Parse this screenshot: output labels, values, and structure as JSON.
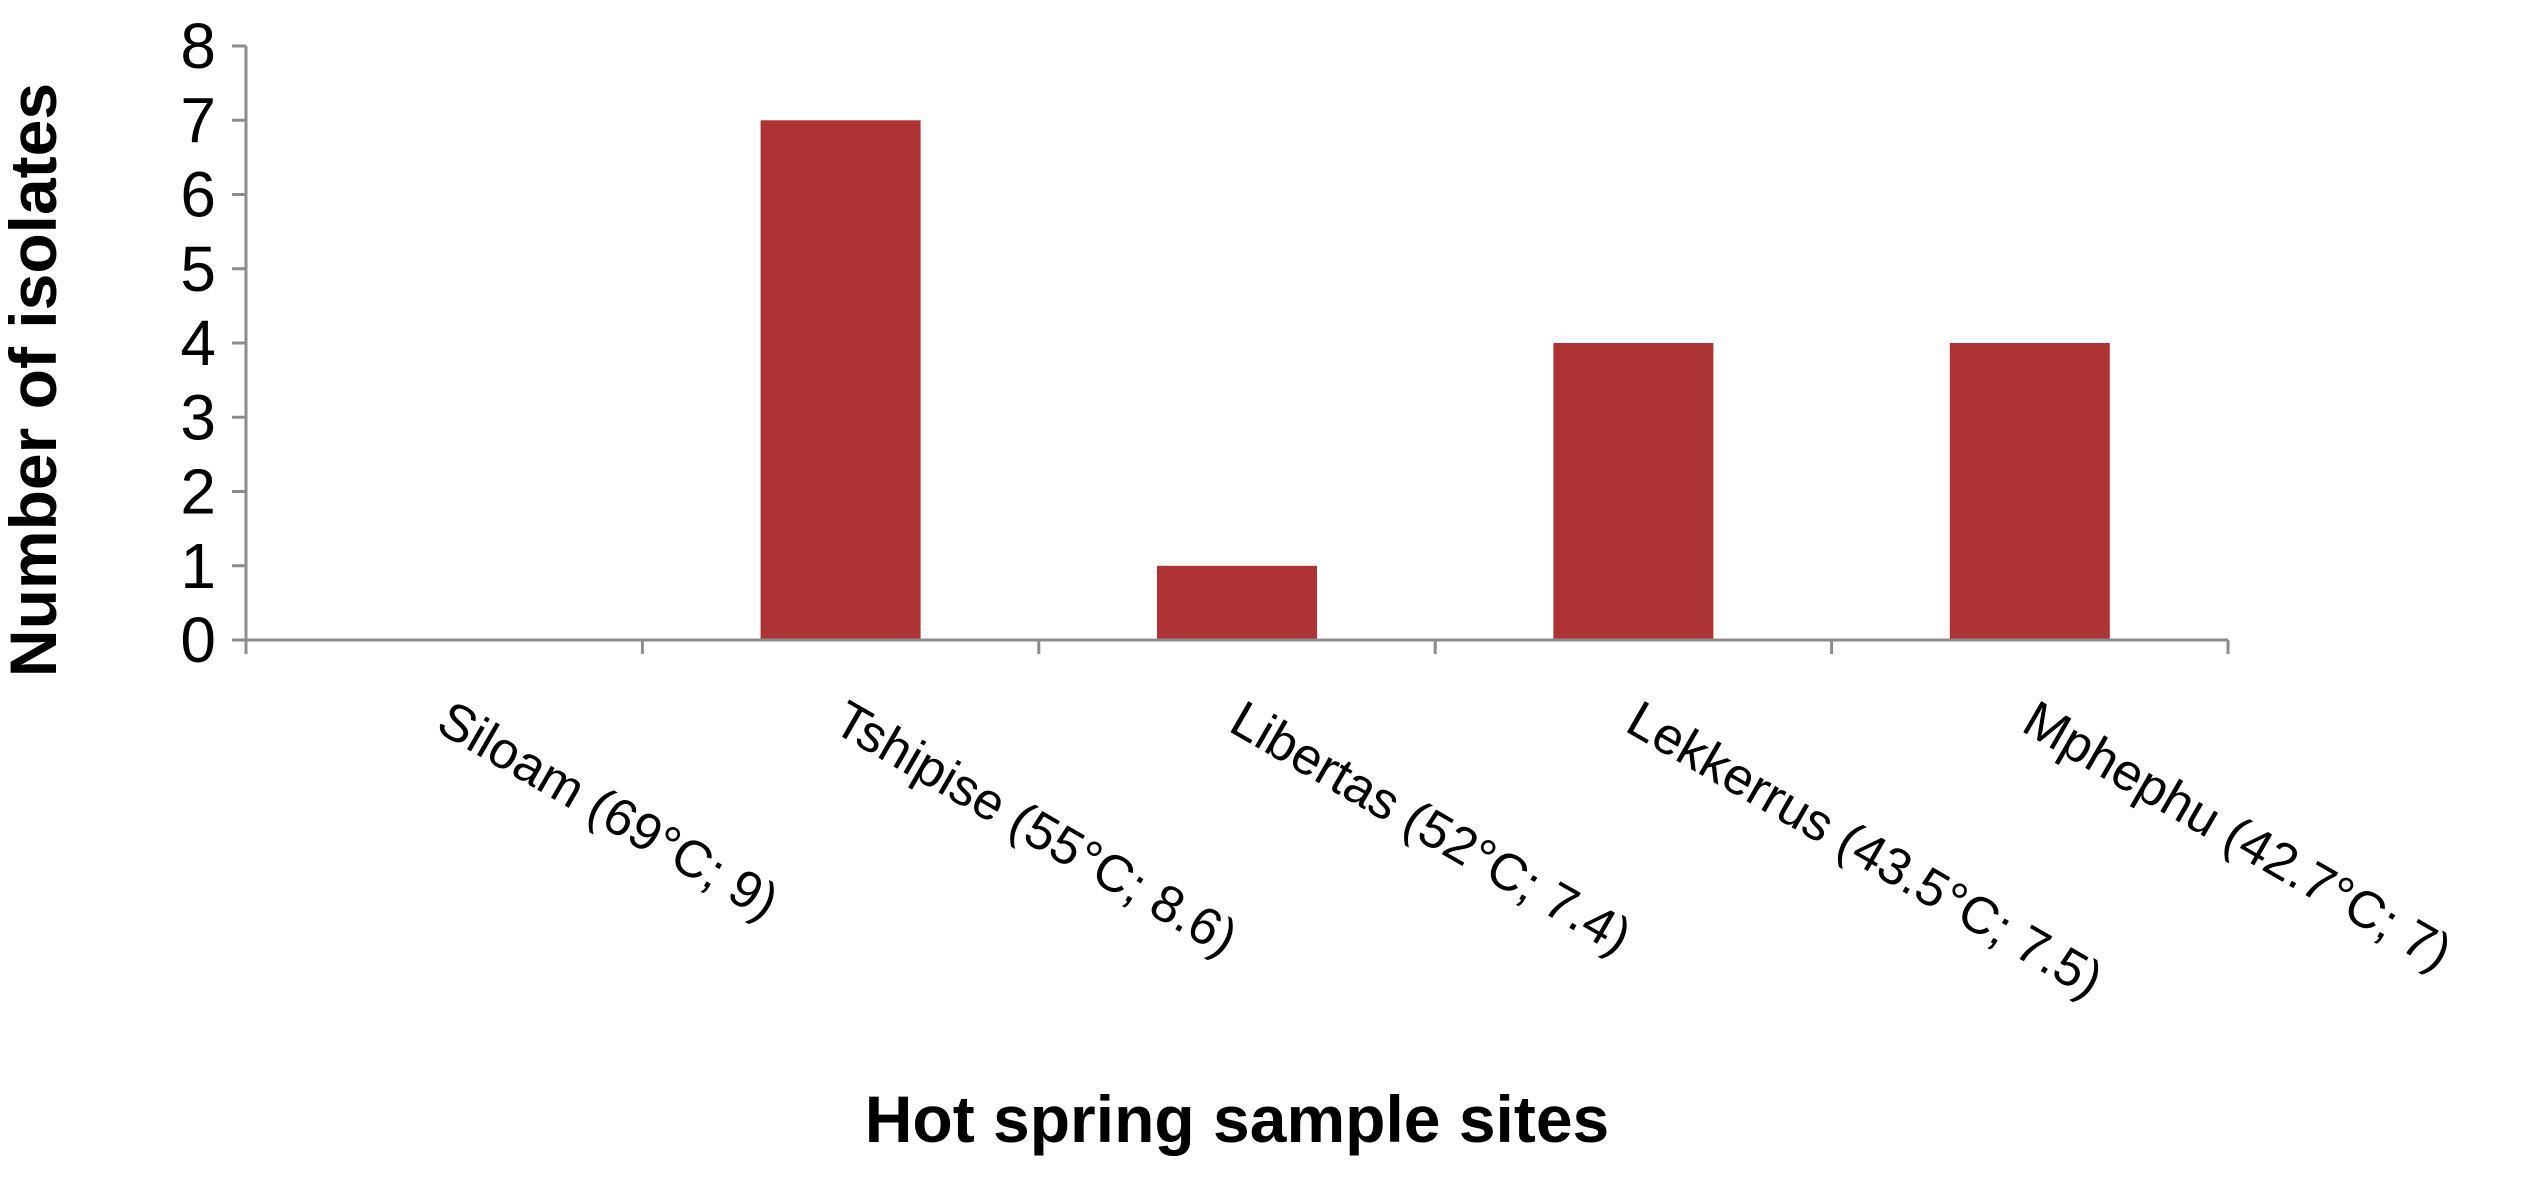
{
  "chart_data": {
    "type": "bar",
    "title": "",
    "xlabel": "Hot spring sample sites",
    "ylabel": "Number of isolates",
    "categories": [
      "Siloam (69°C; 9)",
      "Tshipise (55°C; 8.6)",
      "Libertas (52°C; 7.4)",
      "Lekkerrus (43.5°C; 7.5)",
      "Mphephu (42.7°C; 7)"
    ],
    "values": [
      0,
      7,
      1,
      4,
      4
    ],
    "ylim": [
      0,
      8
    ],
    "yticks": [
      "0",
      "1",
      "2",
      "3",
      "4",
      "5",
      "6",
      "7",
      "8"
    ],
    "grid": false,
    "legend": "none",
    "colors": {
      "bar": "#AD3335",
      "axis": "#8C8C8C",
      "text": "#000000"
    }
  }
}
